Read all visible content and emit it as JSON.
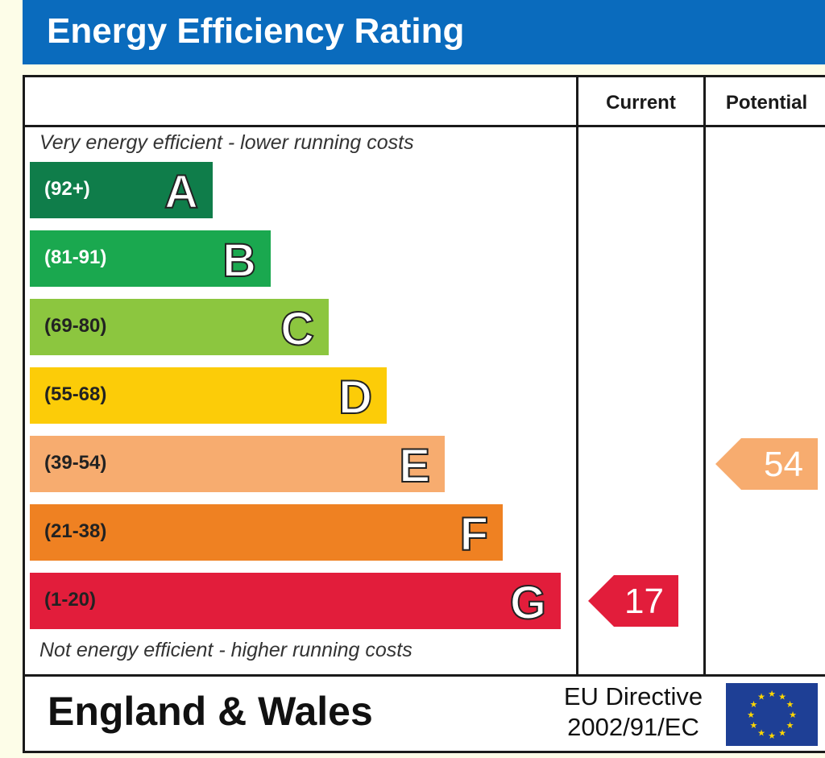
{
  "header": {
    "title": "Energy Efficiency Rating"
  },
  "table": {
    "current_label": "Current",
    "potential_label": "Potential",
    "top_note": "Very energy efficient - lower running costs",
    "bottom_note": "Not energy efficient - higher running costs"
  },
  "footer": {
    "region": "England & Wales",
    "directive_line1": "EU Directive",
    "directive_line2": "2002/91/EC",
    "flag_icon": "eu-flag-icon"
  },
  "chart_data": {
    "type": "bar",
    "title": "Energy Efficiency Rating",
    "bands": [
      {
        "letter": "A",
        "range": "(92+)",
        "color": "#0f7d4a",
        "range_color": "#ffffff"
      },
      {
        "letter": "B",
        "range": "(81-91)",
        "color": "#1aa84f",
        "range_color": "#ffffff"
      },
      {
        "letter": "C",
        "range": "(69-80)",
        "color": "#8cc63f",
        "range_color": "#222222"
      },
      {
        "letter": "D",
        "range": "(55-68)",
        "color": "#fccc08",
        "range_color": "#222222"
      },
      {
        "letter": "E",
        "range": "(39-54)",
        "color": "#f7ac6f",
        "range_color": "#222222"
      },
      {
        "letter": "F",
        "range": "(21-38)",
        "color": "#ef8122",
        "range_color": "#222222"
      },
      {
        "letter": "G",
        "range": "(1-20)",
        "color": "#e21d3b",
        "range_color": "#222222"
      }
    ],
    "current": {
      "value": 17,
      "band": "G",
      "color": "#e21d3b"
    },
    "potential": {
      "value": 54,
      "band": "E",
      "color": "#f7ac6f"
    }
  }
}
